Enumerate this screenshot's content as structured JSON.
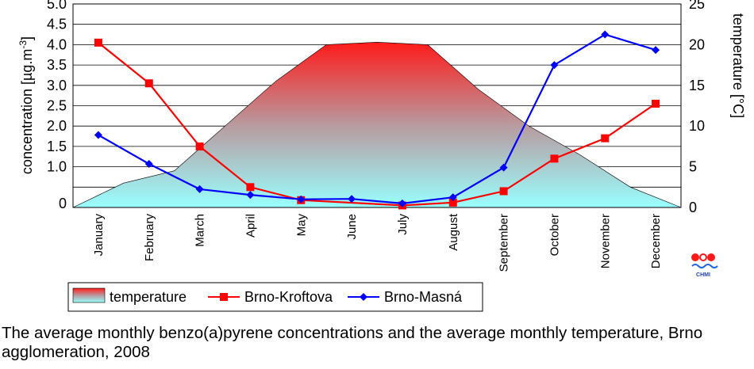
{
  "chart_data": {
    "type": "line",
    "categories": [
      "January",
      "February",
      "March",
      "April",
      "May",
      "June",
      "July",
      "August",
      "September",
      "October",
      "November",
      "December"
    ],
    "y_left": {
      "label": "concentration  [µg.m",
      "label_sup": "-3",
      "label_end": "]",
      "range": [
        0,
        5.0
      ],
      "ticks": [
        "0",
        "1.0",
        "1.5",
        "2.0",
        "2.5",
        "3.0",
        "3.5",
        "4.0",
        "4.5",
        "5.0"
      ]
    },
    "y_right": {
      "label": "temperature [°C]",
      "range": [
        0,
        25
      ],
      "ticks": [
        "0",
        "5",
        "10",
        "15",
        "20",
        "25"
      ]
    },
    "temperature": {
      "name": "temperature",
      "x": [
        0.5,
        1.5,
        2.5,
        3.5,
        4.5,
        5.5,
        6.5,
        7.5,
        8.5,
        9.5,
        10.5,
        11.5,
        12.5
      ],
      "values": [
        0,
        3,
        4.5,
        10,
        15.5,
        20,
        20.3,
        20,
        14.5,
        10,
        6.5,
        2.5,
        0
      ]
    },
    "series": [
      {
        "name": "Brno-Kroftova",
        "color": "#ff0000",
        "marker": "square",
        "values": [
          4.05,
          3.05,
          1.5,
          0.5,
          0.18,
          null,
          0.05,
          0.12,
          0.4,
          1.2,
          1.7,
          2.55
        ]
      },
      {
        "name": "Brno-Masná",
        "color": "#0000ff",
        "marker": "diamond",
        "values": [
          1.78,
          1.07,
          0.45,
          0.31,
          0.2,
          0.21,
          0.1,
          0.25,
          0.98,
          3.5,
          4.25,
          3.87
        ]
      }
    ],
    "grid": true,
    "legend_position": "bottom-left"
  },
  "logo": {
    "text": "CHMI"
  },
  "caption": "The average monthly benzo(a)pyrene concentrations and the average monthly temperature, Brno agglomeration, 2008"
}
